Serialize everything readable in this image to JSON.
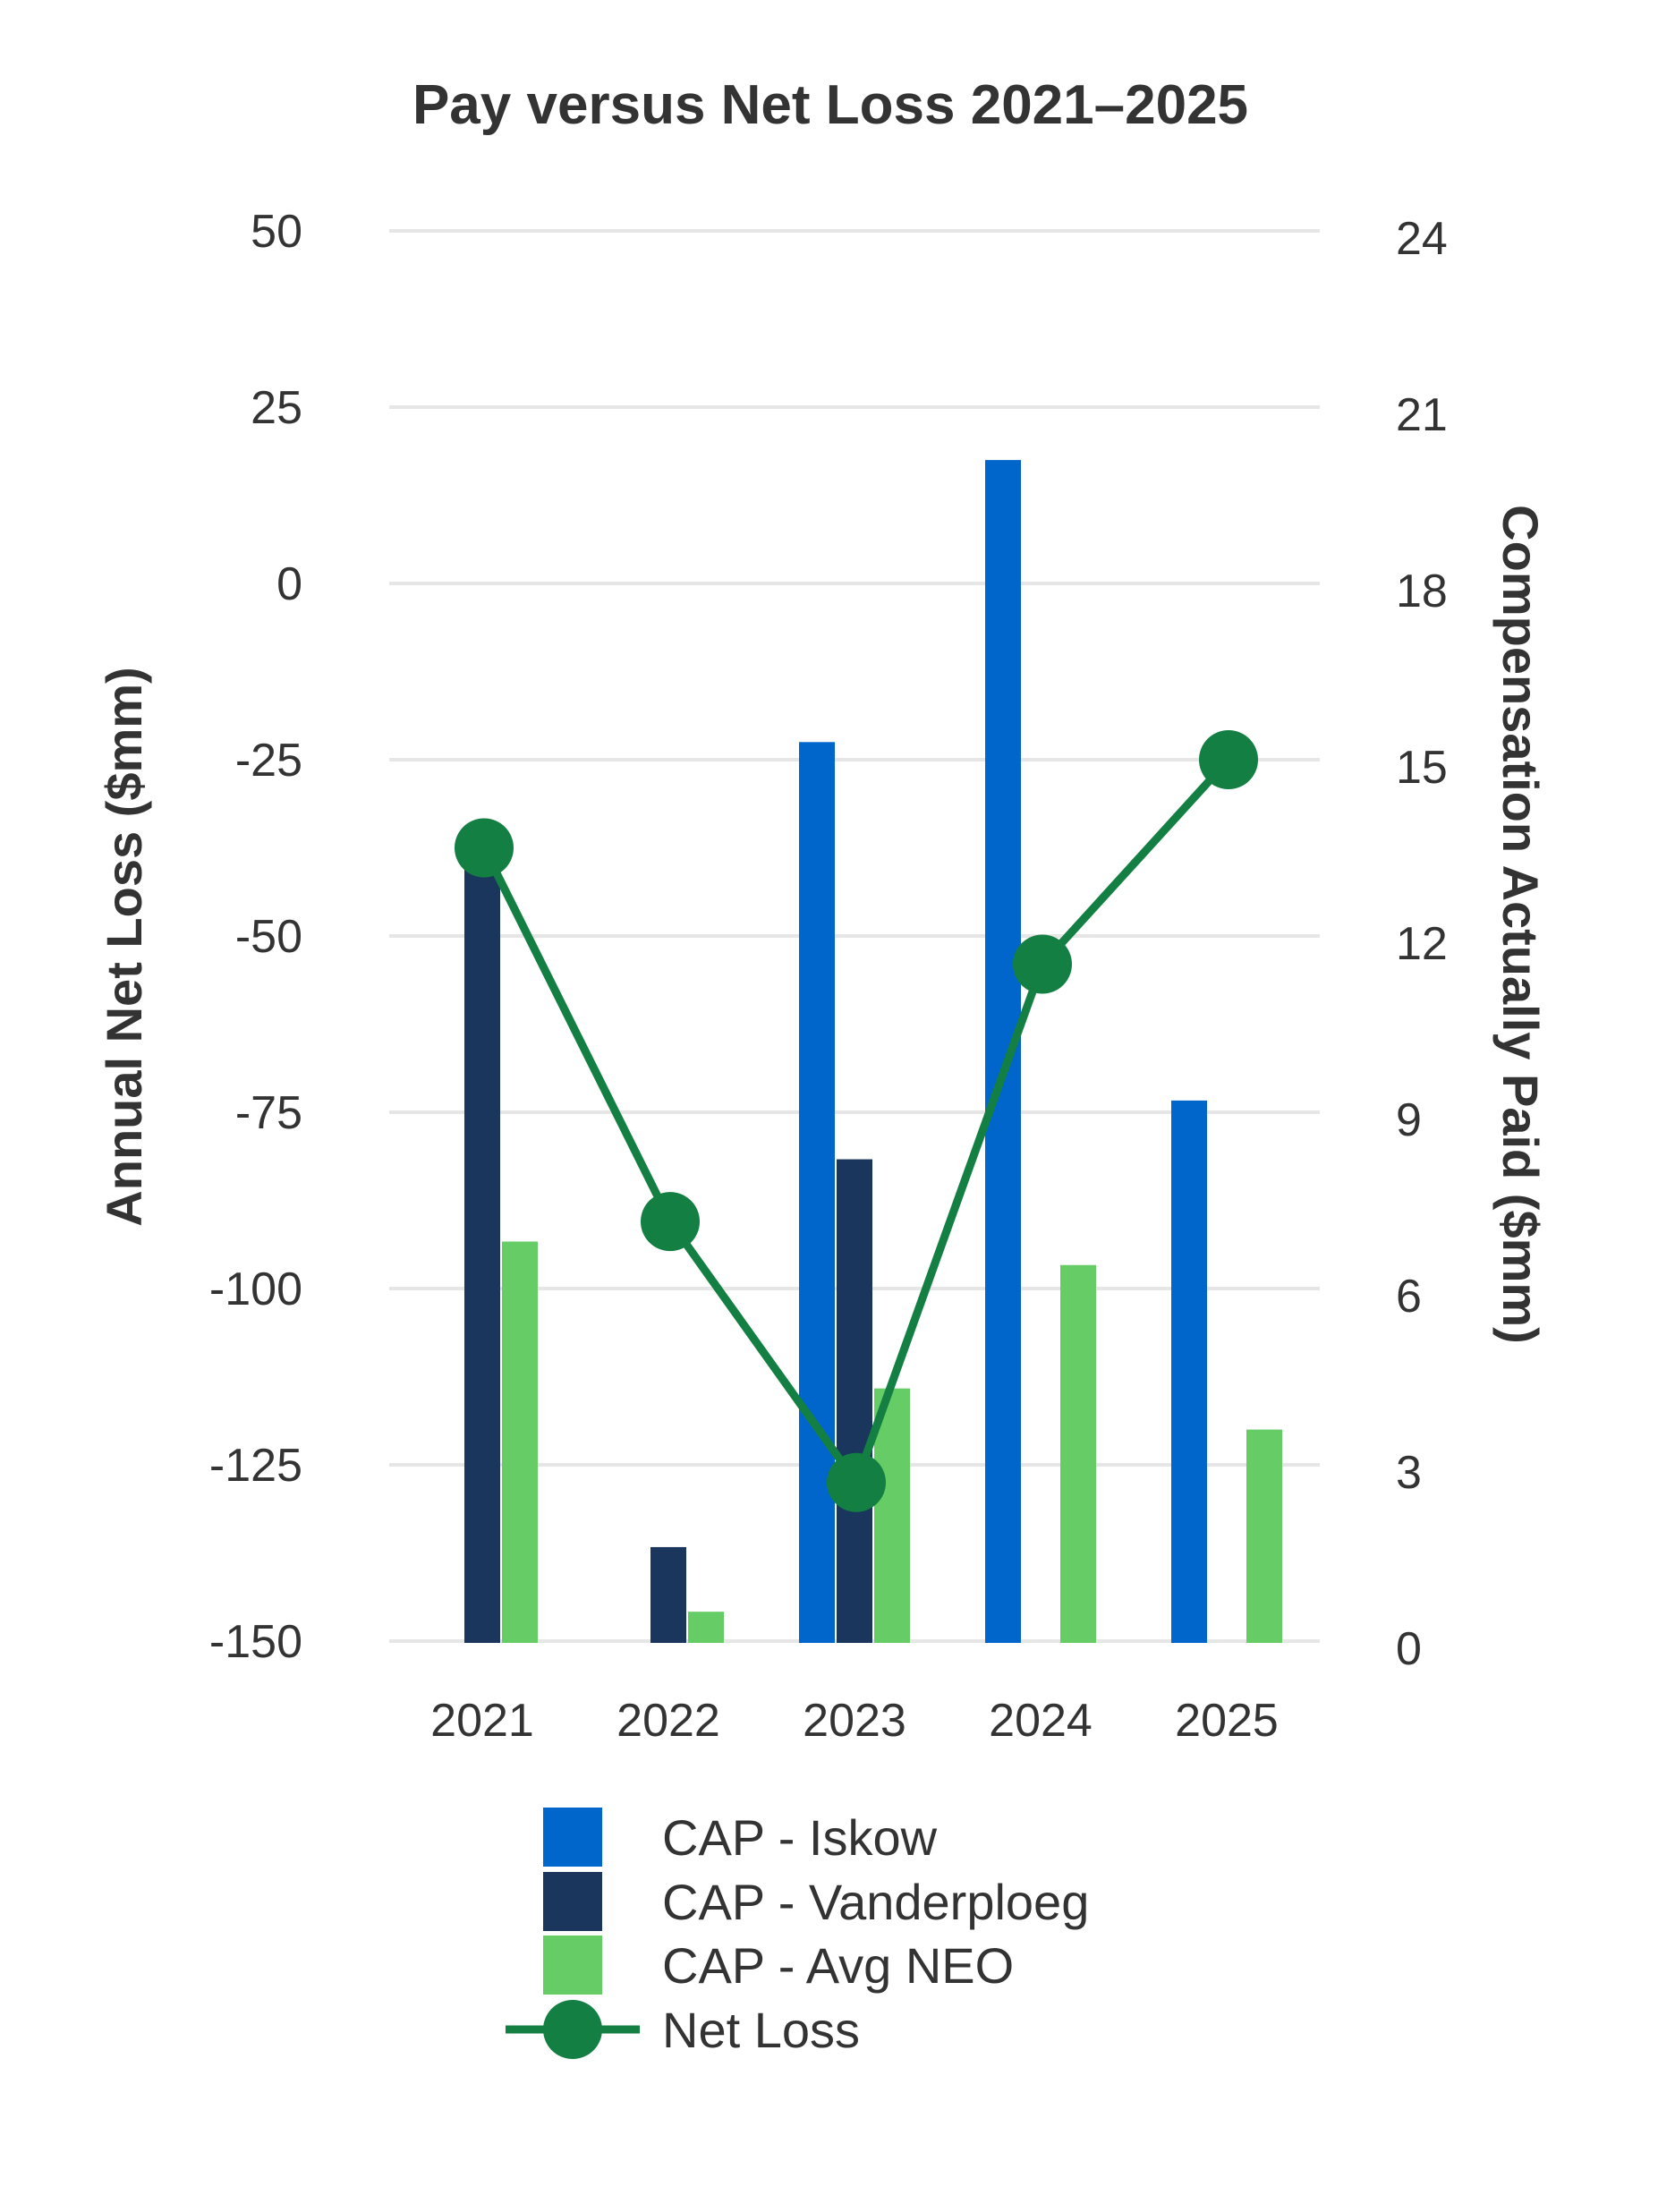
{
  "chart_data": {
    "type": "bar",
    "title": "Pay versus Net Loss 2021–2025",
    "categories": [
      "2021",
      "2022",
      "2023",
      "2024",
      "2025"
    ],
    "y_left": {
      "label": "Annual Net Loss ($mm)",
      "ticks": [
        "50",
        "25",
        "0",
        "-25",
        "-50",
        "-75",
        "-100",
        "-125",
        "-150"
      ],
      "range": [
        -150,
        50
      ]
    },
    "y_right": {
      "label": "Compensation Actually Paid ($mm)",
      "ticks": [
        "24",
        "21",
        "18",
        "15",
        "12",
        "9",
        "6",
        "3",
        "0"
      ],
      "range": [
        0,
        24
      ]
    },
    "series": [
      {
        "name": "CAP - Iskow",
        "type": "bar",
        "axis": "right",
        "color": "#0066cc",
        "values": [
          null,
          null,
          15.3,
          20.1,
          9.2
        ]
      },
      {
        "name": "CAP - Vanderploeg",
        "type": "bar",
        "axis": "right",
        "color": "#1b365d",
        "values": [
          13.4,
          1.6,
          8.2,
          null,
          null
        ]
      },
      {
        "name": "CAP - Avg NEO",
        "type": "bar",
        "axis": "right",
        "color": "#66cc66",
        "values": [
          6.8,
          0.5,
          4.3,
          6.4,
          3.6
        ]
      },
      {
        "name": "Net Loss",
        "type": "line",
        "axis": "left",
        "color": "#137f43",
        "values": [
          -37.5,
          -90.5,
          -127.5,
          -54,
          -25
        ]
      }
    ],
    "grid": true,
    "legend_position": "bottom"
  }
}
